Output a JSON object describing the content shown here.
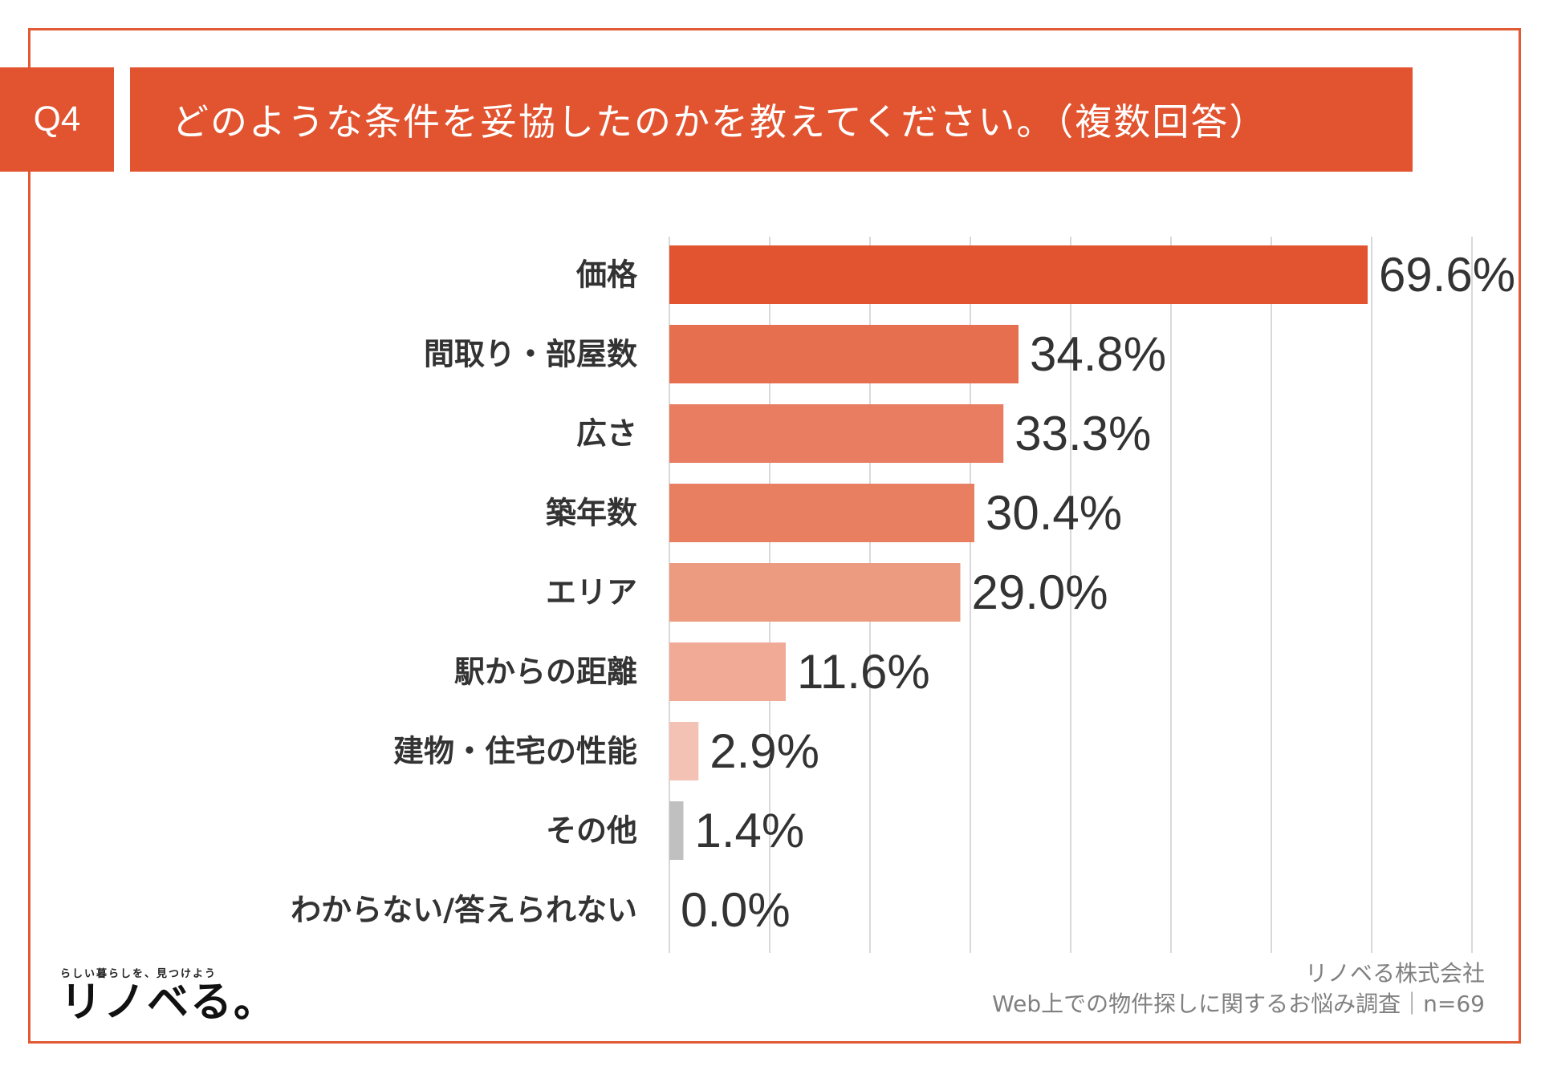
{
  "header": {
    "question_number": "Q4",
    "question_text": "どのような条件を妥協したのかを教えてください。（複数回答）"
  },
  "colors": {
    "accent": "#e2532f",
    "frame": "#e05a33",
    "grid": "#d9d9d9",
    "other": "#c0c0c0"
  },
  "chart_data": {
    "type": "bar",
    "orientation": "horizontal",
    "categories": [
      "価格",
      "間取り・部屋数",
      "広さ",
      "築年数",
      "エリア",
      "駅からの距離",
      "建物・住宅の性能",
      "その他",
      "わからない/答えられない"
    ],
    "values": [
      69.6,
      34.8,
      33.3,
      30.4,
      29.0,
      11.6,
      2.9,
      1.4,
      0.0
    ],
    "value_labels": [
      "69.6%",
      "34.8%",
      "33.3%",
      "30.4%",
      "29.0%",
      "11.6%",
      "2.9%",
      "1.4%",
      "0.0%"
    ],
    "bar_colors": [
      "#e2532f",
      "#e66f4f",
      "#e87d61",
      "#e97f61",
      "#ec9a80",
      "#f1aa96",
      "#f4c2b4",
      "#c0c0c0",
      "#c0c0c0"
    ],
    "xlim": [
      0,
      80
    ],
    "x_grid_step": 10,
    "grid": true,
    "unit": "%",
    "title": "どのような条件を妥協したのかを教えてください。（複数回答）"
  },
  "branding": {
    "tagline": "らしい暮らしを、見つけよう",
    "logo": "リノベる。"
  },
  "footer": {
    "company": "リノベる株式会社",
    "survey": "Web上での物件探しに関するお悩み調査｜n=69"
  }
}
